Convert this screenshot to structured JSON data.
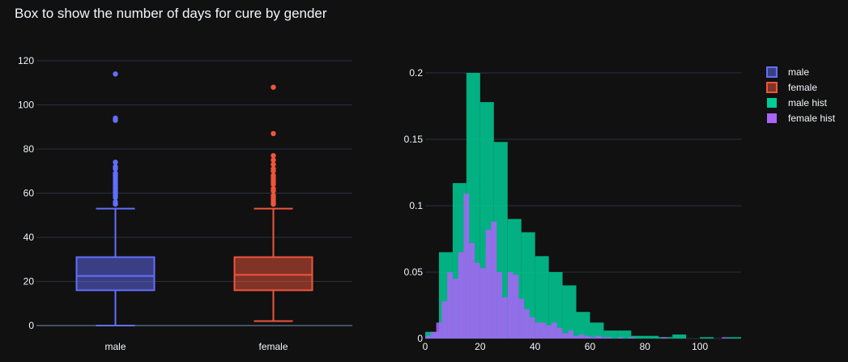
{
  "chart_data": [
    {
      "type": "box",
      "title": "Box to show the number of days for cure by gender",
      "ylim": [
        0,
        120
      ],
      "y_ticks": [
        0,
        20,
        40,
        60,
        80,
        100,
        120
      ],
      "grid": true,
      "categories": [
        "male",
        "female"
      ],
      "series": [
        {
          "name": "male",
          "color": "#636efa",
          "lowerfence": 0,
          "q1": 16,
          "median": 22.5,
          "q3": 31,
          "upperfence": 53,
          "outliers": [
            55,
            56,
            58,
            59,
            60,
            61,
            62,
            63,
            64,
            65,
            66,
            67,
            68,
            69,
            71,
            72,
            74,
            93,
            94,
            114
          ]
        },
        {
          "name": "female",
          "color": "#ef553b",
          "lowerfence": 2,
          "q1": 16,
          "median": 23,
          "q3": 31,
          "upperfence": 53,
          "outliers": [
            55,
            56,
            57,
            58,
            59,
            61,
            62,
            64,
            65,
            66,
            67,
            68,
            70,
            71,
            73,
            75,
            77,
            87,
            108
          ]
        }
      ]
    },
    {
      "type": "histogram",
      "xlim": [
        0,
        115
      ],
      "ylim": [
        0,
        0.2
      ],
      "x_ticks": [
        0,
        20,
        40,
        60,
        80,
        100
      ],
      "y_ticks": [
        0,
        0.05,
        0.1,
        0.15,
        0.2
      ],
      "y_tick_labels": [
        "0",
        "0.05",
        "0.1",
        "0.15",
        "0.2"
      ],
      "grid": true,
      "series": [
        {
          "name": "male hist",
          "color": "#00cc96",
          "bin_width": 5,
          "bins": [
            {
              "x0": 0,
              "y": 0.005
            },
            {
              "x0": 5,
              "y": 0.065
            },
            {
              "x0": 10,
              "y": 0.117
            },
            {
              "x0": 15,
              "y": 0.2
            },
            {
              "x0": 20,
              "y": 0.178
            },
            {
              "x0": 25,
              "y": 0.148
            },
            {
              "x0": 30,
              "y": 0.09
            },
            {
              "x0": 35,
              "y": 0.08
            },
            {
              "x0": 40,
              "y": 0.062
            },
            {
              "x0": 45,
              "y": 0.05
            },
            {
              "x0": 50,
              "y": 0.04
            },
            {
              "x0": 55,
              "y": 0.02
            },
            {
              "x0": 60,
              "y": 0.012
            },
            {
              "x0": 65,
              "y": 0.006
            },
            {
              "x0": 70,
              "y": 0.006
            },
            {
              "x0": 75,
              "y": 0.002
            },
            {
              "x0": 80,
              "y": 0.002
            },
            {
              "x0": 85,
              "y": 0.001
            },
            {
              "x0": 90,
              "y": 0.003
            },
            {
              "x0": 100,
              "y": 0.001
            },
            {
              "x0": 110,
              "y": 0.001
            }
          ]
        },
        {
          "name": "female hist",
          "color": "#ab63fa",
          "bin_width": 2,
          "bins": [
            {
              "x0": 0,
              "y": 0.002
            },
            {
              "x0": 2,
              "y": 0.005
            },
            {
              "x0": 4,
              "y": 0.012
            },
            {
              "x0": 6,
              "y": 0.028
            },
            {
              "x0": 8,
              "y": 0.05
            },
            {
              "x0": 10,
              "y": 0.045
            },
            {
              "x0": 12,
              "y": 0.065
            },
            {
              "x0": 14,
              "y": 0.109
            },
            {
              "x0": 16,
              "y": 0.072
            },
            {
              "x0": 18,
              "y": 0.057
            },
            {
              "x0": 20,
              "y": 0.053
            },
            {
              "x0": 22,
              "y": 0.082
            },
            {
              "x0": 24,
              "y": 0.088
            },
            {
              "x0": 26,
              "y": 0.05
            },
            {
              "x0": 28,
              "y": 0.031
            },
            {
              "x0": 30,
              "y": 0.05
            },
            {
              "x0": 32,
              "y": 0.048
            },
            {
              "x0": 34,
              "y": 0.03
            },
            {
              "x0": 36,
              "y": 0.022
            },
            {
              "x0": 38,
              "y": 0.016
            },
            {
              "x0": 40,
              "y": 0.012
            },
            {
              "x0": 42,
              "y": 0.012
            },
            {
              "x0": 44,
              "y": 0.01
            },
            {
              "x0": 46,
              "y": 0.012
            },
            {
              "x0": 48,
              "y": 0.008
            },
            {
              "x0": 50,
              "y": 0.004
            },
            {
              "x0": 52,
              "y": 0.006
            },
            {
              "x0": 54,
              "y": 0.002
            },
            {
              "x0": 56,
              "y": 0.003
            },
            {
              "x0": 58,
              "y": 0.002
            },
            {
              "x0": 60,
              "y": 0.001
            },
            {
              "x0": 62,
              "y": 0.002
            },
            {
              "x0": 64,
              "y": 0.001
            },
            {
              "x0": 66,
              "y": 0.001
            },
            {
              "x0": 70,
              "y": 0.001
            },
            {
              "x0": 74,
              "y": 0.001
            },
            {
              "x0": 86,
              "y": 0.001
            },
            {
              "x0": 108,
              "y": 0.001
            }
          ]
        }
      ]
    }
  ],
  "legend": {
    "placement": "top-right",
    "items": [
      {
        "label": "male",
        "color": "#636efa",
        "style": "outline"
      },
      {
        "label": "female",
        "color": "#ef553b",
        "style": "outline"
      },
      {
        "label": "male hist",
        "color": "#00cc96",
        "style": "filled"
      },
      {
        "label": "female hist",
        "color": "#ab63fa",
        "style": "filled"
      }
    ]
  }
}
